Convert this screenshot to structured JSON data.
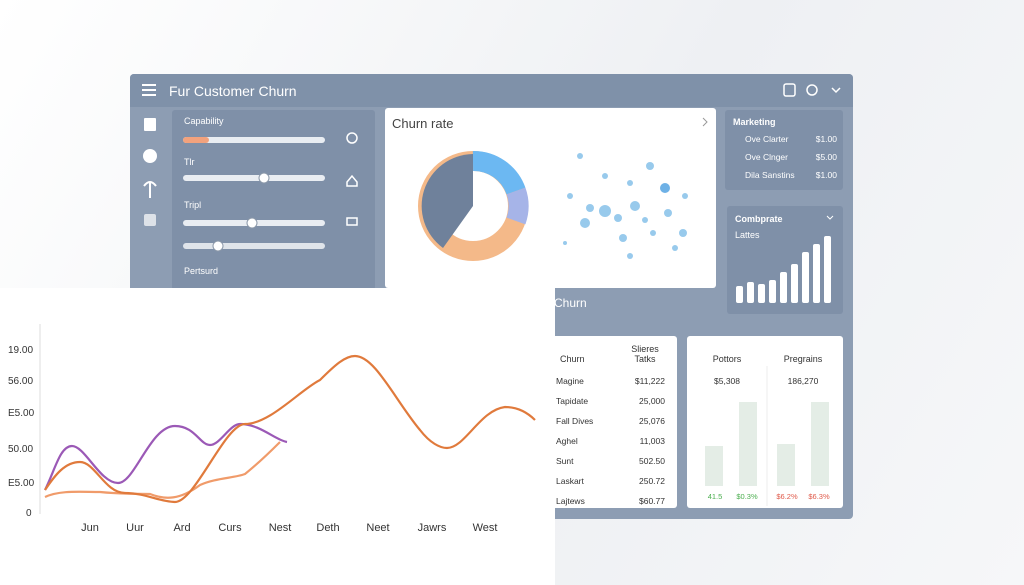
{
  "header": {
    "title": "Fur Customer Churn"
  },
  "sliders": [
    "Capability",
    "Tlr",
    "Tripl",
    "Pertsurd"
  ],
  "churn_rate_card": {
    "title": "Churn rate"
  },
  "marketing": {
    "title": "Marketing",
    "rows": [
      [
        "Ove Clarter",
        "$1.00"
      ],
      [
        "Ove Clnger",
        "$5.00"
      ],
      [
        "Dila Sanstins",
        "$1.00"
      ]
    ]
  },
  "combprate": {
    "title": "Combprate",
    "subtitle": "Lattes"
  },
  "churn_section": {
    "title": "Churn"
  },
  "table": {
    "headers": [
      "Churn",
      "Slieres Tatks"
    ],
    "rows": [
      [
        "Magine",
        "$11,222"
      ],
      [
        "Tapidate",
        "25,000"
      ],
      [
        "Fall Dives",
        "25,076"
      ],
      [
        "Aghel",
        "11,003"
      ],
      [
        "Sunt",
        "502.50"
      ],
      [
        "Laskart",
        "250.72"
      ],
      [
        "Lajtews",
        "$60.77"
      ]
    ]
  },
  "summary": {
    "headers": [
      "Pottors",
      "Pregrains"
    ],
    "values": [
      "$5,308",
      "186,270"
    ],
    "bar_labels": [
      "41.5",
      "$0.3%",
      "$6.2%",
      "$6.3%"
    ]
  },
  "line_chart": {
    "y_labels": [
      "19.00",
      "56.00",
      "E5.00",
      "50.00",
      "E5.00",
      "0"
    ],
    "x_labels": [
      "Jun",
      "Uur",
      "Ard",
      "Curs",
      "Nest",
      "Deth",
      "Neet",
      "Jawrs",
      "West"
    ]
  }
}
